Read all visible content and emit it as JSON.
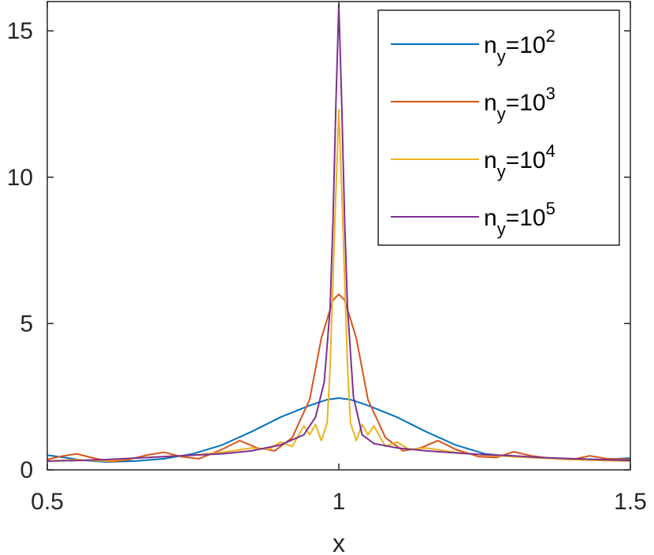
{
  "chart_data": {
    "type": "line",
    "xlabel": "x",
    "ylabel": "",
    "xlim": [
      0.5,
      1.5
    ],
    "ylim": [
      0,
      16
    ],
    "xticks": [
      0.5,
      1,
      1.5
    ],
    "xtick_labels": [
      "0.5",
      "1",
      "1.5"
    ],
    "yticks": [
      0,
      5,
      10,
      15
    ],
    "ytick_labels": [
      "0",
      "5",
      "10",
      "15"
    ],
    "grid": false,
    "legend_position": "top-right",
    "series": [
      {
        "name": "n_y=10^2",
        "legend": {
          "base": "n",
          "sub": "y",
          "mid": "=10",
          "sup": "2"
        },
        "color": "#0072BD",
        "x": [
          0.5,
          0.53,
          0.56,
          0.6,
          0.65,
          0.7,
          0.75,
          0.8,
          0.85,
          0.9,
          0.95,
          0.98,
          1.0,
          1.02,
          1.05,
          1.1,
          1.15,
          1.2,
          1.25,
          1.3,
          1.35,
          1.4,
          1.45,
          1.5
        ],
        "y": [
          0.5,
          0.42,
          0.33,
          0.27,
          0.3,
          0.38,
          0.55,
          0.85,
          1.3,
          1.8,
          2.2,
          2.4,
          2.45,
          2.4,
          2.2,
          1.8,
          1.3,
          0.85,
          0.55,
          0.45,
          0.4,
          0.38,
          0.35,
          0.4
        ]
      },
      {
        "name": "n_y=10^3",
        "legend": {
          "base": "n",
          "sub": "y",
          "mid": "=10",
          "sup": "3"
        },
        "color": "#D95319",
        "x": [
          0.5,
          0.52,
          0.55,
          0.58,
          0.61,
          0.64,
          0.67,
          0.7,
          0.73,
          0.76,
          0.8,
          0.83,
          0.86,
          0.89,
          0.92,
          0.95,
          0.97,
          0.99,
          1.0,
          1.01,
          1.03,
          1.05,
          1.08,
          1.11,
          1.14,
          1.17,
          1.2,
          1.24,
          1.27,
          1.3,
          1.33,
          1.36,
          1.4,
          1.43,
          1.46,
          1.5
        ],
        "y": [
          0.35,
          0.45,
          0.55,
          0.4,
          0.28,
          0.35,
          0.5,
          0.6,
          0.45,
          0.38,
          0.7,
          1.0,
          0.75,
          0.65,
          1.1,
          2.4,
          4.5,
          5.8,
          6.0,
          5.8,
          4.5,
          2.4,
          1.1,
          0.65,
          0.75,
          1.0,
          0.7,
          0.45,
          0.42,
          0.62,
          0.48,
          0.4,
          0.35,
          0.48,
          0.38,
          0.35
        ]
      },
      {
        "name": "n_y=10^4",
        "legend": {
          "base": "n",
          "sub": "y",
          "mid": "=10",
          "sup": "4"
        },
        "color": "#EDB120",
        "x": [
          0.5,
          0.55,
          0.6,
          0.65,
          0.7,
          0.75,
          0.8,
          0.85,
          0.88,
          0.9,
          0.92,
          0.94,
          0.95,
          0.96,
          0.97,
          0.98,
          0.985,
          0.99,
          0.995,
          1.0,
          1.005,
          1.01,
          1.015,
          1.02,
          1.03,
          1.04,
          1.05,
          1.06,
          1.08,
          1.1,
          1.12,
          1.15,
          1.2,
          1.25,
          1.3,
          1.35,
          1.4,
          1.45,
          1.5
        ],
        "y": [
          0.3,
          0.35,
          0.3,
          0.4,
          0.45,
          0.5,
          0.6,
          0.75,
          0.7,
          0.95,
          0.8,
          1.5,
          1.2,
          1.55,
          1.0,
          1.6,
          3.5,
          6.5,
          9.5,
          12.3,
          9.5,
          6.5,
          3.5,
          1.6,
          1.0,
          1.55,
          1.2,
          1.5,
          0.8,
          0.95,
          0.7,
          0.75,
          0.6,
          0.5,
          0.45,
          0.4,
          0.35,
          0.32,
          0.3
        ]
      },
      {
        "name": "n_y=10^5",
        "legend": {
          "base": "n",
          "sub": "y",
          "mid": "=10",
          "sup": "5"
        },
        "color": "#7E2F8E",
        "x": [
          0.5,
          0.55,
          0.6,
          0.65,
          0.7,
          0.75,
          0.8,
          0.85,
          0.9,
          0.94,
          0.96,
          0.975,
          0.985,
          0.99,
          0.995,
          1.0,
          1.005,
          1.01,
          1.015,
          1.025,
          1.04,
          1.06,
          1.1,
          1.15,
          1.2,
          1.25,
          1.3,
          1.35,
          1.4,
          1.45,
          1.5
        ],
        "y": [
          0.3,
          0.32,
          0.35,
          0.4,
          0.45,
          0.5,
          0.55,
          0.65,
          0.85,
          1.2,
          1.8,
          3.0,
          5.5,
          8.5,
          12.5,
          15.9,
          12.5,
          8.5,
          5.5,
          2.5,
          1.2,
          0.9,
          0.75,
          0.65,
          0.58,
          0.52,
          0.48,
          0.42,
          0.38,
          0.35,
          0.32
        ]
      }
    ]
  }
}
